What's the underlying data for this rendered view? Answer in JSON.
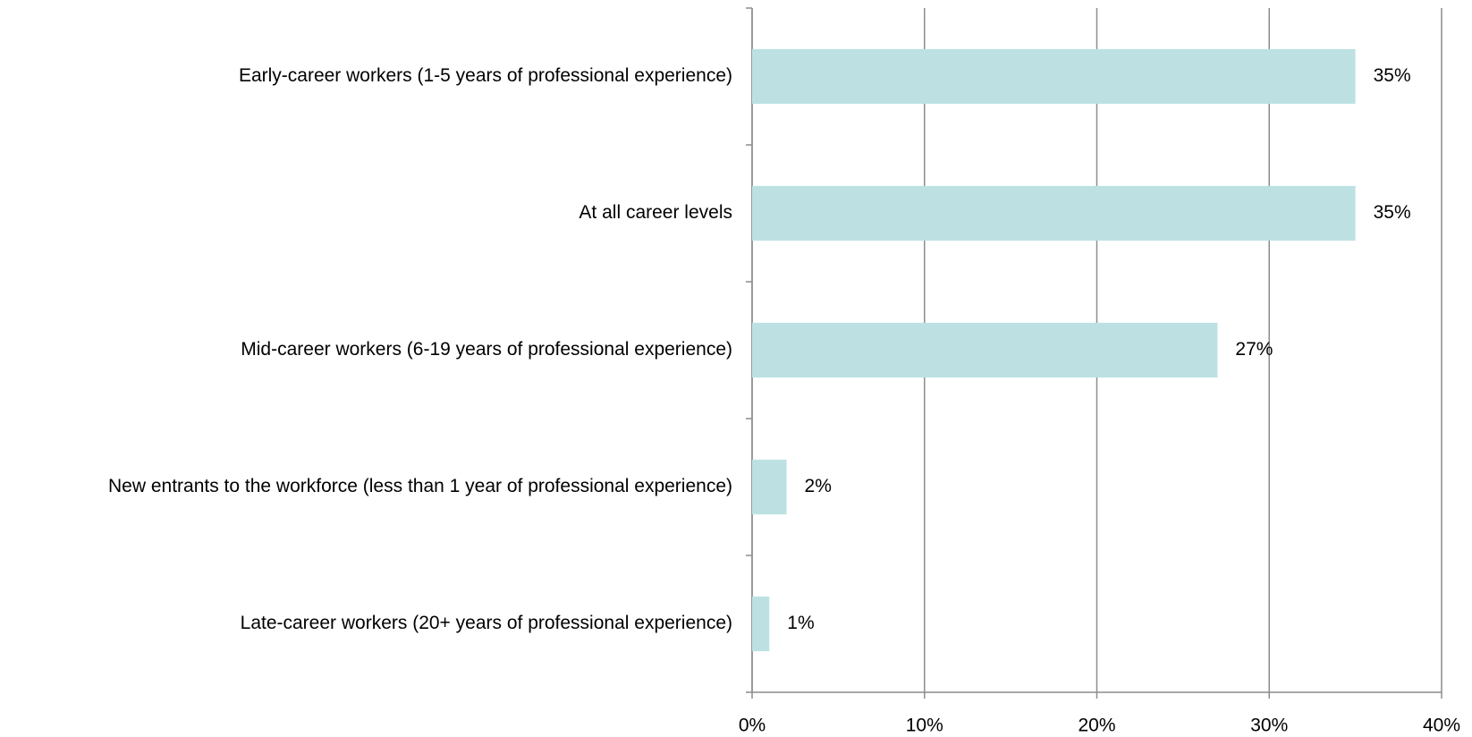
{
  "chart_data": {
    "type": "bar",
    "orientation": "horizontal",
    "categories": [
      "Early-career workers (1-5 years of professional experience)",
      "At all career levels",
      "Mid-career workers (6-19 years of professional experience)",
      "New entrants to the workforce (less than 1 year of professional experience)",
      "Late-career workers (20+ years of professional experience)"
    ],
    "values": [
      35,
      35,
      27,
      2,
      1
    ],
    "value_labels": [
      "35%",
      "35%",
      "27%",
      "2%",
      "1%"
    ],
    "color": "#bde1e3",
    "xlim": [
      0,
      40
    ],
    "xticks": [
      {
        "value": 0,
        "label": "0%"
      },
      {
        "value": 10,
        "label": "10%"
      },
      {
        "value": 20,
        "label": "20%"
      },
      {
        "value": 30,
        "label": "30%"
      },
      {
        "value": 40,
        "label": "40%"
      }
    ],
    "grid": true
  }
}
